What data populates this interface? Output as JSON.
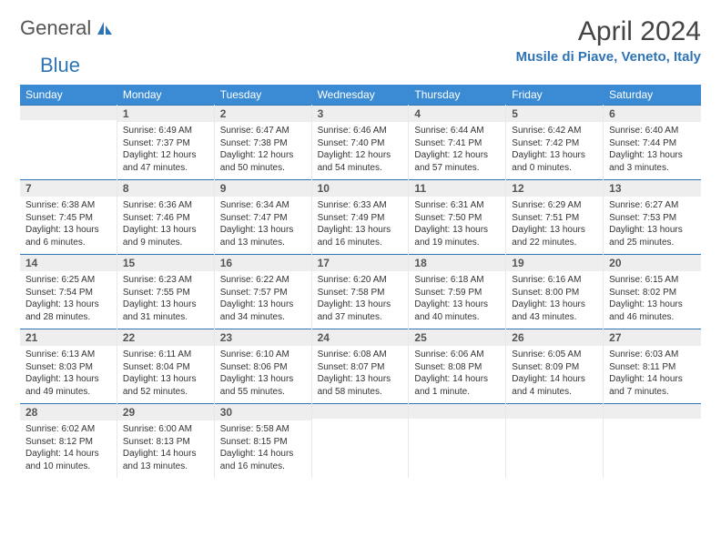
{
  "logo": {
    "text1": "General",
    "text2": "Blue"
  },
  "title": "April 2024",
  "location": "Musile di Piave, Veneto, Italy",
  "colors": {
    "header_bg": "#3b8bd4",
    "accent": "#2e74b5",
    "daynum_bg": "#eeeeee",
    "text": "#333333"
  },
  "dow": [
    "Sunday",
    "Monday",
    "Tuesday",
    "Wednesday",
    "Thursday",
    "Friday",
    "Saturday"
  ],
  "weeks": [
    [
      null,
      {
        "n": "1",
        "sr": "6:49 AM",
        "ss": "7:37 PM",
        "dl": "12 hours and 47 minutes."
      },
      {
        "n": "2",
        "sr": "6:47 AM",
        "ss": "7:38 PM",
        "dl": "12 hours and 50 minutes."
      },
      {
        "n": "3",
        "sr": "6:46 AM",
        "ss": "7:40 PM",
        "dl": "12 hours and 54 minutes."
      },
      {
        "n": "4",
        "sr": "6:44 AM",
        "ss": "7:41 PM",
        "dl": "12 hours and 57 minutes."
      },
      {
        "n": "5",
        "sr": "6:42 AM",
        "ss": "7:42 PM",
        "dl": "13 hours and 0 minutes."
      },
      {
        "n": "6",
        "sr": "6:40 AM",
        "ss": "7:44 PM",
        "dl": "13 hours and 3 minutes."
      }
    ],
    [
      {
        "n": "7",
        "sr": "6:38 AM",
        "ss": "7:45 PM",
        "dl": "13 hours and 6 minutes."
      },
      {
        "n": "8",
        "sr": "6:36 AM",
        "ss": "7:46 PM",
        "dl": "13 hours and 9 minutes."
      },
      {
        "n": "9",
        "sr": "6:34 AM",
        "ss": "7:47 PM",
        "dl": "13 hours and 13 minutes."
      },
      {
        "n": "10",
        "sr": "6:33 AM",
        "ss": "7:49 PM",
        "dl": "13 hours and 16 minutes."
      },
      {
        "n": "11",
        "sr": "6:31 AM",
        "ss": "7:50 PM",
        "dl": "13 hours and 19 minutes."
      },
      {
        "n": "12",
        "sr": "6:29 AM",
        "ss": "7:51 PM",
        "dl": "13 hours and 22 minutes."
      },
      {
        "n": "13",
        "sr": "6:27 AM",
        "ss": "7:53 PM",
        "dl": "13 hours and 25 minutes."
      }
    ],
    [
      {
        "n": "14",
        "sr": "6:25 AM",
        "ss": "7:54 PM",
        "dl": "13 hours and 28 minutes."
      },
      {
        "n": "15",
        "sr": "6:23 AM",
        "ss": "7:55 PM",
        "dl": "13 hours and 31 minutes."
      },
      {
        "n": "16",
        "sr": "6:22 AM",
        "ss": "7:57 PM",
        "dl": "13 hours and 34 minutes."
      },
      {
        "n": "17",
        "sr": "6:20 AM",
        "ss": "7:58 PM",
        "dl": "13 hours and 37 minutes."
      },
      {
        "n": "18",
        "sr": "6:18 AM",
        "ss": "7:59 PM",
        "dl": "13 hours and 40 minutes."
      },
      {
        "n": "19",
        "sr": "6:16 AM",
        "ss": "8:00 PM",
        "dl": "13 hours and 43 minutes."
      },
      {
        "n": "20",
        "sr": "6:15 AM",
        "ss": "8:02 PM",
        "dl": "13 hours and 46 minutes."
      }
    ],
    [
      {
        "n": "21",
        "sr": "6:13 AM",
        "ss": "8:03 PM",
        "dl": "13 hours and 49 minutes."
      },
      {
        "n": "22",
        "sr": "6:11 AM",
        "ss": "8:04 PM",
        "dl": "13 hours and 52 minutes."
      },
      {
        "n": "23",
        "sr": "6:10 AM",
        "ss": "8:06 PM",
        "dl": "13 hours and 55 minutes."
      },
      {
        "n": "24",
        "sr": "6:08 AM",
        "ss": "8:07 PM",
        "dl": "13 hours and 58 minutes."
      },
      {
        "n": "25",
        "sr": "6:06 AM",
        "ss": "8:08 PM",
        "dl": "14 hours and 1 minute."
      },
      {
        "n": "26",
        "sr": "6:05 AM",
        "ss": "8:09 PM",
        "dl": "14 hours and 4 minutes."
      },
      {
        "n": "27",
        "sr": "6:03 AM",
        "ss": "8:11 PM",
        "dl": "14 hours and 7 minutes."
      }
    ],
    [
      {
        "n": "28",
        "sr": "6:02 AM",
        "ss": "8:12 PM",
        "dl": "14 hours and 10 minutes."
      },
      {
        "n": "29",
        "sr": "6:00 AM",
        "ss": "8:13 PM",
        "dl": "14 hours and 13 minutes."
      },
      {
        "n": "30",
        "sr": "5:58 AM",
        "ss": "8:15 PM",
        "dl": "14 hours and 16 minutes."
      },
      null,
      null,
      null,
      null
    ]
  ],
  "labels": {
    "sunrise": "Sunrise:",
    "sunset": "Sunset:",
    "daylight": "Daylight:"
  }
}
